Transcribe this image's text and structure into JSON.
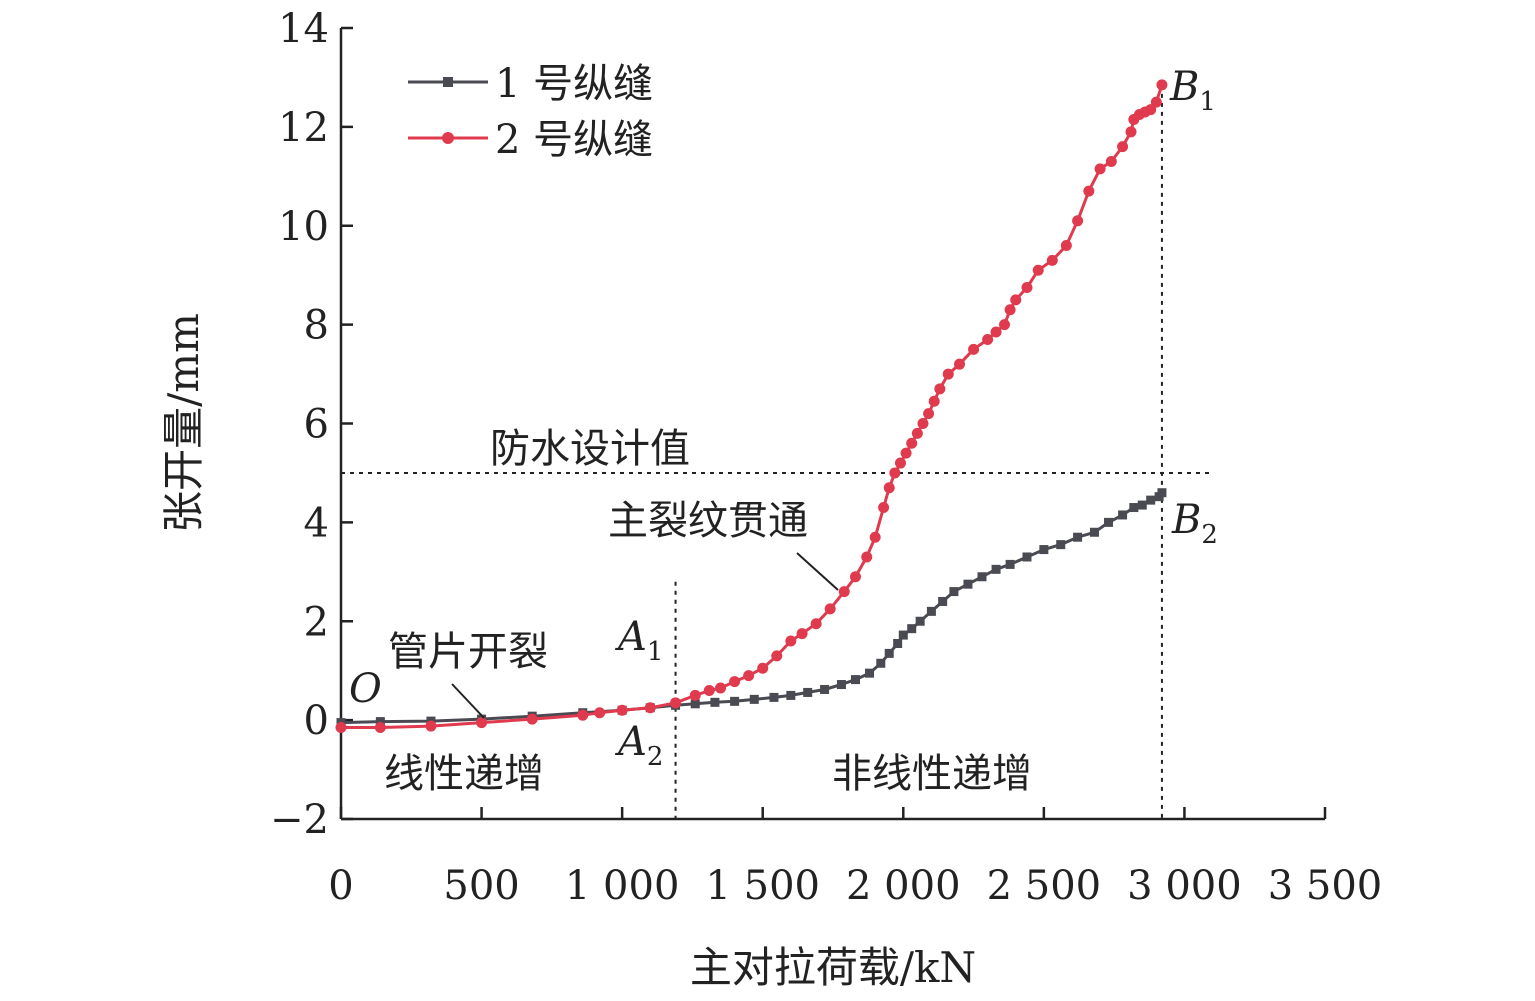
{
  "chart_data": {
    "type": "line",
    "xlabel": "主对拉荷载/kN",
    "ylabel": "张开量/mm",
    "xlim": [
      0,
      3500
    ],
    "ylim": [
      -2,
      14
    ],
    "xticks": [
      0,
      500,
      1000,
      1500,
      2000,
      2500,
      3000,
      3500
    ],
    "xtick_labels": [
      "0",
      "500",
      "1 000",
      "1 500",
      "2 000",
      "2 500",
      "3 000",
      "3 500"
    ],
    "yticks": [
      -2,
      0,
      2,
      4,
      6,
      8,
      10,
      12,
      14
    ],
    "ytick_labels": [
      "−2",
      "0",
      "2",
      "4",
      "6",
      "8",
      "10",
      "12",
      "14"
    ],
    "legend": {
      "placement": "top-left",
      "entries": [
        "1 号纵缝",
        "2 号纵缝"
      ]
    },
    "series": [
      {
        "name": "1 号纵缝",
        "color": "#4a4a52",
        "marker": "square",
        "x": [
          0,
          140,
          320,
          500,
          680,
          860,
          1000,
          1100,
          1190,
          1260,
          1330,
          1400,
          1470,
          1540,
          1600,
          1660,
          1720,
          1780,
          1830,
          1880,
          1920,
          1950,
          1980,
          2000,
          2030,
          2060,
          2100,
          2140,
          2180,
          2230,
          2280,
          2330,
          2380,
          2440,
          2500,
          2560,
          2620,
          2680,
          2730,
          2780,
          2820,
          2850,
          2880,
          2910,
          2920
        ],
        "y": [
          -0.05,
          -0.03,
          -0.02,
          0.02,
          0.08,
          0.15,
          0.2,
          0.25,
          0.3,
          0.33,
          0.36,
          0.38,
          0.42,
          0.46,
          0.5,
          0.56,
          0.62,
          0.72,
          0.82,
          0.95,
          1.15,
          1.35,
          1.55,
          1.72,
          1.85,
          2.0,
          2.2,
          2.4,
          2.6,
          2.75,
          2.9,
          3.05,
          3.15,
          3.3,
          3.45,
          3.55,
          3.7,
          3.8,
          4.0,
          4.15,
          4.3,
          4.35,
          4.45,
          4.52,
          4.6
        ]
      },
      {
        "name": "2 号纵缝",
        "color": "#e03a4e",
        "marker": "circle",
        "x": [
          0,
          140,
          320,
          500,
          680,
          860,
          920,
          1000,
          1100,
          1190,
          1260,
          1310,
          1350,
          1400,
          1450,
          1500,
          1550,
          1600,
          1640,
          1690,
          1740,
          1790,
          1830,
          1870,
          1900,
          1930,
          1950,
          1970,
          1990,
          2010,
          2030,
          2050,
          2070,
          2090,
          2110,
          2130,
          2160,
          2200,
          2250,
          2300,
          2330,
          2360,
          2380,
          2400,
          2440,
          2480,
          2530,
          2580,
          2620,
          2660,
          2700,
          2740,
          2780,
          2810,
          2820,
          2840,
          2860,
          2880,
          2900,
          2920
        ],
        "y": [
          -0.15,
          -0.15,
          -0.12,
          -0.05,
          0.02,
          0.1,
          0.15,
          0.2,
          0.25,
          0.35,
          0.5,
          0.6,
          0.65,
          0.78,
          0.9,
          1.05,
          1.3,
          1.6,
          1.75,
          1.95,
          2.25,
          2.6,
          2.9,
          3.3,
          3.7,
          4.3,
          4.7,
          5.0,
          5.2,
          5.4,
          5.6,
          5.8,
          6.0,
          6.2,
          6.45,
          6.7,
          7.0,
          7.2,
          7.5,
          7.7,
          7.85,
          8.0,
          8.3,
          8.5,
          8.75,
          9.1,
          9.3,
          9.6,
          10.1,
          10.7,
          11.15,
          11.3,
          11.6,
          11.9,
          12.15,
          12.25,
          12.3,
          12.35,
          12.5,
          12.85
        ]
      }
    ],
    "reference_lines": [
      {
        "orientation": "horizontal",
        "value": 5,
        "label": "防水设计值"
      },
      {
        "orientation": "vertical",
        "value": 1190,
        "label": "A1 / A2"
      },
      {
        "orientation": "vertical",
        "value": 2920,
        "label": "B1 / B2"
      }
    ],
    "annotations": {
      "origin": "O",
      "a1": "A1",
      "a2": "A2",
      "b1": "B1",
      "b2": "B2",
      "waterproof": "防水设计值",
      "segment_crack": "管片开裂",
      "main_crack": "主裂纹贯通",
      "linear": "线性递增",
      "nonlinear": "非线性递增"
    }
  }
}
